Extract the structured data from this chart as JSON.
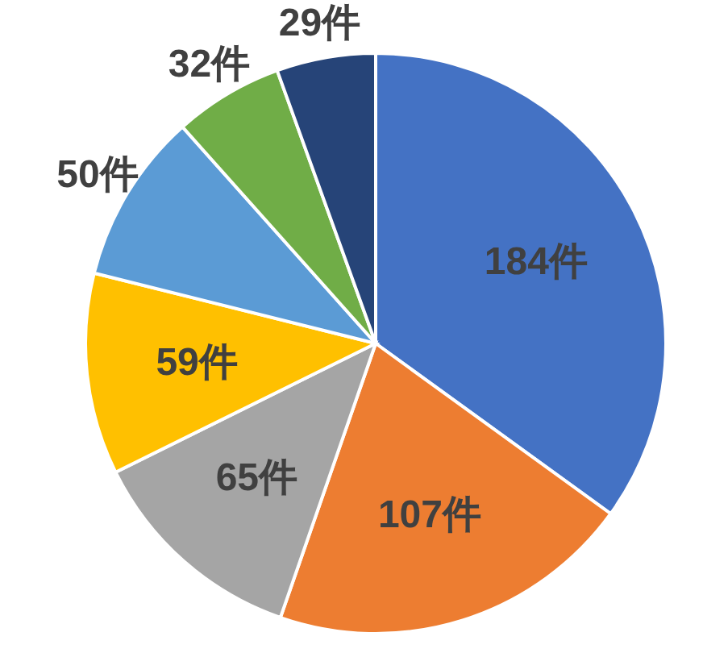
{
  "chart_data": {
    "type": "pie",
    "categories": [
      null,
      null,
      null,
      null,
      null,
      null,
      null
    ],
    "values": [
      184,
      107,
      65,
      59,
      50,
      32,
      29
    ],
    "colors": [
      "#4472c4",
      "#ed7d31",
      "#a5a5a5",
      "#ffc000",
      "#5b9bd5",
      "#70ad47",
      "#264478"
    ],
    "value_labels": [
      "184件",
      "107件",
      "65件",
      "59件",
      "50件",
      "32件",
      "29件"
    ]
  }
}
